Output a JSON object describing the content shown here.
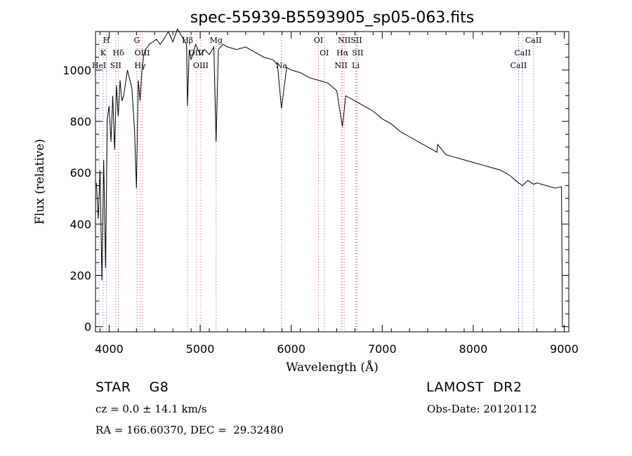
{
  "chart_data": {
    "type": "line",
    "title": "spec-55939-B5593905_sp05-063.fits",
    "xlabel": "Wavelength (Å)",
    "ylabel": "Flux (relative)",
    "xlim": [
      3850,
      9050
    ],
    "ylim": [
      -20,
      1150
    ],
    "xticks": [
      4000,
      5000,
      6000,
      7000,
      8000,
      9000
    ],
    "yticks": [
      0,
      200,
      400,
      600,
      800,
      1000
    ],
    "grid": false,
    "series": [
      {
        "x": [
          3860,
          3880,
          3900,
          3920,
          3940,
          3960,
          3980,
          4000,
          4020,
          4040,
          4060,
          4080,
          4100,
          4120,
          4140,
          4160,
          4200,
          4250,
          4280,
          4300,
          4320,
          4340,
          4360,
          4380,
          4400,
          4440,
          4480,
          4520,
          4560,
          4600,
          4650,
          4700,
          4750,
          4800,
          4850,
          4861,
          4880,
          4900,
          4950,
          5000,
          5050,
          5100,
          5150,
          5175,
          5200,
          5250,
          5300,
          5400,
          5500,
          5600,
          5700,
          5800,
          5850,
          5893,
          5950,
          6000,
          6100,
          6200,
          6300,
          6400,
          6500,
          6563,
          6600,
          6700,
          6800,
          6900,
          7000,
          7100,
          7200,
          7300,
          7400,
          7500,
          7600,
          7610,
          7700,
          7800,
          7900,
          8000,
          8100,
          8200,
          8300,
          8400,
          8498,
          8542,
          8600,
          8662,
          8700,
          8800,
          8900,
          8970,
          8980,
          9000
        ],
        "values": [
          560,
          420,
          610,
          180,
          650,
          230,
          810,
          860,
          720,
          900,
          690,
          940,
          820,
          960,
          880,
          900,
          1000,
          930,
          760,
          540,
          960,
          880,
          1000,
          1060,
          1080,
          1100,
          1110,
          1120,
          1100,
          1120,
          1150,
          1110,
          1160,
          1130,
          1100,
          860,
          1080,
          1040,
          1100,
          1060,
          1080,
          1060,
          1090,
          720,
          1080,
          1100,
          1090,
          1080,
          1090,
          1070,
          1050,
          1040,
          1020,
          850,
          1010,
          1000,
          990,
          970,
          960,
          950,
          920,
          780,
          900,
          880,
          860,
          840,
          810,
          790,
          760,
          740,
          720,
          700,
          680,
          710,
          670,
          660,
          650,
          640,
          630,
          620,
          610,
          590,
          560,
          550,
          570,
          555,
          560,
          550,
          540,
          545,
          0,
          0
        ]
      }
    ],
    "lines": {
      "markers": [
        {
          "label": "H",
          "x": 3970,
          "row": 1
        },
        {
          "label": "K",
          "x": 3934,
          "row": 2
        },
        {
          "label": "HeI",
          "x": 3889,
          "row": 3
        },
        {
          "label": "Hδ",
          "x": 4102,
          "row": 2
        },
        {
          "label": "SII",
          "x": 4072,
          "row": 3
        },
        {
          "label": "G",
          "x": 4304,
          "row": 1
        },
        {
          "label": "OIII",
          "x": 4363,
          "row": 2
        },
        {
          "label": "Hγ",
          "x": 4340,
          "row": 3
        },
        {
          "label": "Hβ",
          "x": 4861,
          "row": 1
        },
        {
          "label": "OIII",
          "x": 4959,
          "row": 2
        },
        {
          "label": "OIII",
          "x": 5007,
          "row": 3
        },
        {
          "label": "Mg",
          "x": 5175,
          "row": 1
        },
        {
          "label": "Na",
          "x": 5893,
          "row": 3
        },
        {
          "label": "OI",
          "x": 6300,
          "row": 1
        },
        {
          "label": "OI",
          "x": 6364,
          "row": 2
        },
        {
          "label": "NII",
          "x": 6583,
          "row": 1
        },
        {
          "label": "SII",
          "x": 6716,
          "row": 1
        },
        {
          "label": "Hα",
          "x": 6563,
          "row": 2
        },
        {
          "label": "SII",
          "x": 6731,
          "row": 2
        },
        {
          "label": "NII",
          "x": 6548,
          "row": 3
        },
        {
          "label": "Li",
          "x": 6708,
          "row": 3
        },
        {
          "label": "CaII",
          "x": 8662,
          "row": 1
        },
        {
          "label": "CaII",
          "x": 8542,
          "row": 2
        },
        {
          "label": "CaII",
          "x": 8498,
          "row": 3
        }
      ],
      "emission_color": "#d06060",
      "absorption_color": "#6060c0"
    }
  },
  "info": {
    "class": "STAR    G8",
    "survey": "LAMOST  DR2",
    "cz": "cz = 0.0 ± 14.1 km/s",
    "obs_date": "Obs-Date: 20120112",
    "coords": "RA = 166.60370, DEC =  29.32480"
  }
}
